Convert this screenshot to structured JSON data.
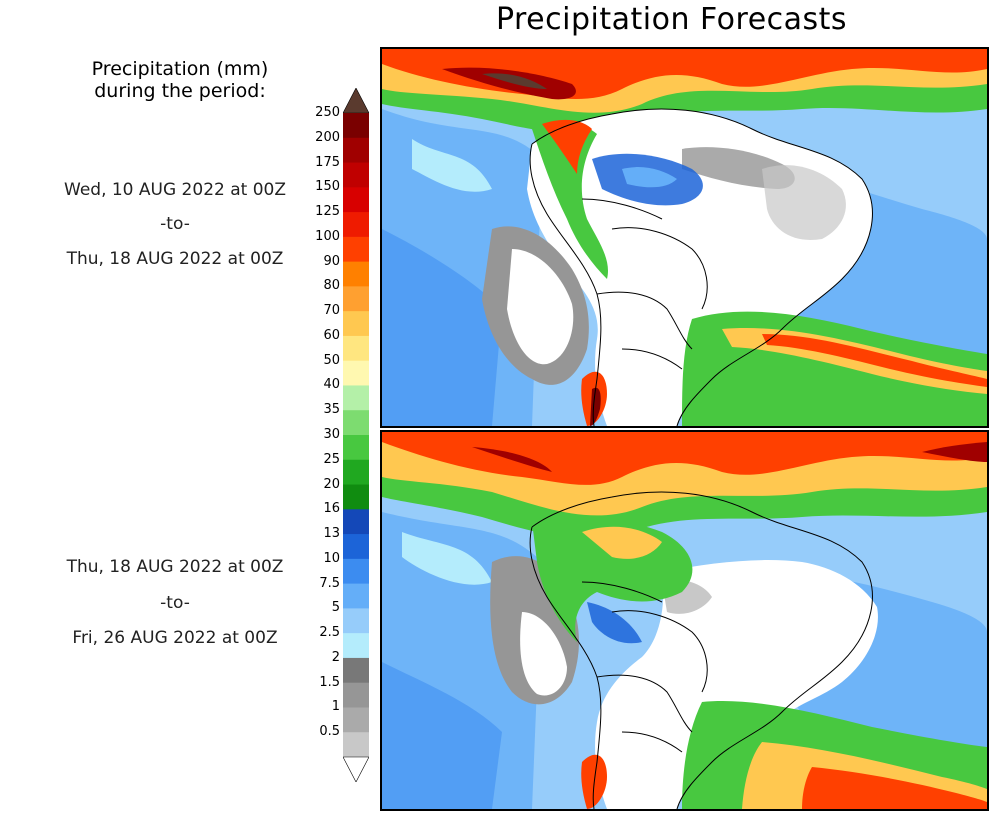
{
  "title": "Precipitation Forecasts",
  "legend_title_line1": "Precipitation (mm)",
  "legend_title_line2": "during the period:",
  "period1": {
    "start": "Wed, 10 AUG 2022 at 00Z",
    "to": "-to-",
    "end": "Thu, 18 AUG 2022 at 00Z"
  },
  "period2": {
    "start": "Thu, 18 AUG 2022 at 00Z",
    "to": "-to-",
    "end": "Fri, 26 AUG 2022 at 00Z"
  },
  "colorbar": {
    "labels": [
      "250",
      "200",
      "175",
      "150",
      "125",
      "100",
      "90",
      "80",
      "70",
      "60",
      "50",
      "40",
      "35",
      "30",
      "25",
      "20",
      "16",
      "13",
      "10",
      "7.5",
      "5",
      "2.5",
      "2",
      "1.5",
      "1",
      "0.5"
    ],
    "colors": [
      "#7a0000",
      "#a00000",
      "#c00000",
      "#d80000",
      "#ef1b00",
      "#ff4000",
      "#ff8000",
      "#ffa030",
      "#ffc850",
      "#ffe680",
      "#fff8b0",
      "#b4f0a8",
      "#7ddc70",
      "#48c840",
      "#20a820",
      "#108c10",
      "#1448b8",
      "#1c64d8",
      "#3c8cf0",
      "#64aef8",
      "#96ccfa",
      "#b4ecfc",
      "#787878",
      "#969696",
      "#aaaaaa",
      "#c8c8c8"
    ],
    "top_color": "#5a3a2e",
    "bottom_color": "#ffffff"
  },
  "colors": {
    "ocean_base": "#96ccfa",
    "land_dry": "#ffffff",
    "border_line": "#000000"
  }
}
